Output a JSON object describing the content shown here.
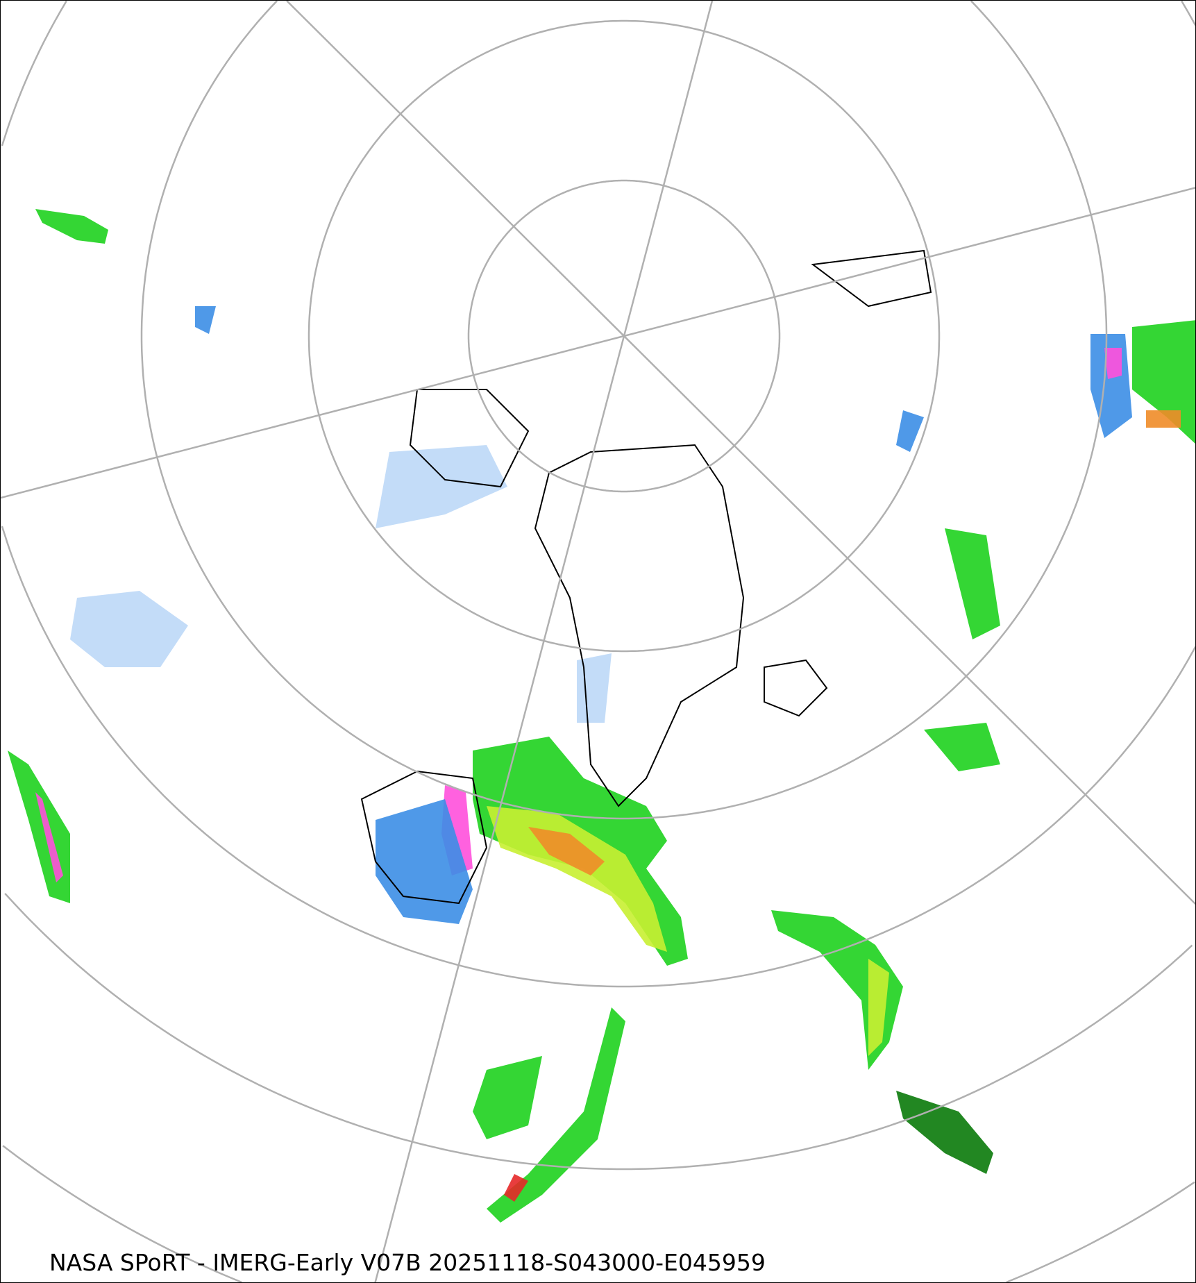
{
  "caption": "NASA SPoRT - IMERG-Early V07B 20251118-S043000-E045959",
  "projection": "north-polar-stereographic",
  "graticule_color": "#b0b0b0",
  "coastline_color": "#000000",
  "precip_colors": {
    "light_blue": "#bcd8f7",
    "blue": "#3c8ee6",
    "dark_blue": "#1a5fb4",
    "green": "#1ed21e",
    "dark_green": "#0a7a0a",
    "yellow_green": "#c8f032",
    "orange": "#f08c28",
    "red": "#e62828",
    "magenta": "#ff50dc"
  }
}
